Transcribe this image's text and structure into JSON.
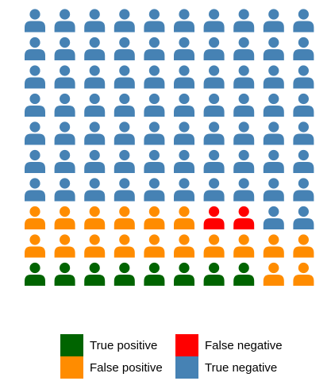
{
  "chart_data": {
    "type": "pictograph",
    "icon": "person-icon",
    "rows": 10,
    "cols": 10,
    "categories": [
      {
        "key": "tp",
        "label": "True positive",
        "color": "#006400"
      },
      {
        "key": "fp",
        "label": "False positive",
        "color": "#ff8c00"
      },
      {
        "key": "fn",
        "label": "False negative",
        "color": "#ff0000"
      },
      {
        "key": "tn",
        "label": "True negative",
        "color": "#4682b4"
      }
    ],
    "grid": [
      [
        "tn",
        "tn",
        "tn",
        "tn",
        "tn",
        "tn",
        "tn",
        "tn",
        "tn",
        "tn"
      ],
      [
        "tn",
        "tn",
        "tn",
        "tn",
        "tn",
        "tn",
        "tn",
        "tn",
        "tn",
        "tn"
      ],
      [
        "tn",
        "tn",
        "tn",
        "tn",
        "tn",
        "tn",
        "tn",
        "tn",
        "tn",
        "tn"
      ],
      [
        "tn",
        "tn",
        "tn",
        "tn",
        "tn",
        "tn",
        "tn",
        "tn",
        "tn",
        "tn"
      ],
      [
        "tn",
        "tn",
        "tn",
        "tn",
        "tn",
        "tn",
        "tn",
        "tn",
        "tn",
        "tn"
      ],
      [
        "tn",
        "tn",
        "tn",
        "tn",
        "tn",
        "tn",
        "tn",
        "tn",
        "tn",
        "tn"
      ],
      [
        "tn",
        "tn",
        "tn",
        "tn",
        "tn",
        "tn",
        "tn",
        "tn",
        "tn",
        "tn"
      ],
      [
        "fp",
        "fp",
        "fp",
        "fp",
        "fp",
        "fp",
        "fn",
        "fn",
        "tn",
        "tn"
      ],
      [
        "fp",
        "fp",
        "fp",
        "fp",
        "fp",
        "fp",
        "fp",
        "fp",
        "fp",
        "fp"
      ],
      [
        "tp",
        "tp",
        "tp",
        "tp",
        "tp",
        "tp",
        "tp",
        "tp",
        "fp",
        "fp"
      ]
    ],
    "counts": {
      "tp": 8,
      "fp": 18,
      "fn": 2,
      "tn": 72
    },
    "legend": {
      "position": "bottom",
      "columns": [
        [
          "tp",
          "fp"
        ],
        [
          "fn",
          "tn"
        ]
      ]
    }
  }
}
